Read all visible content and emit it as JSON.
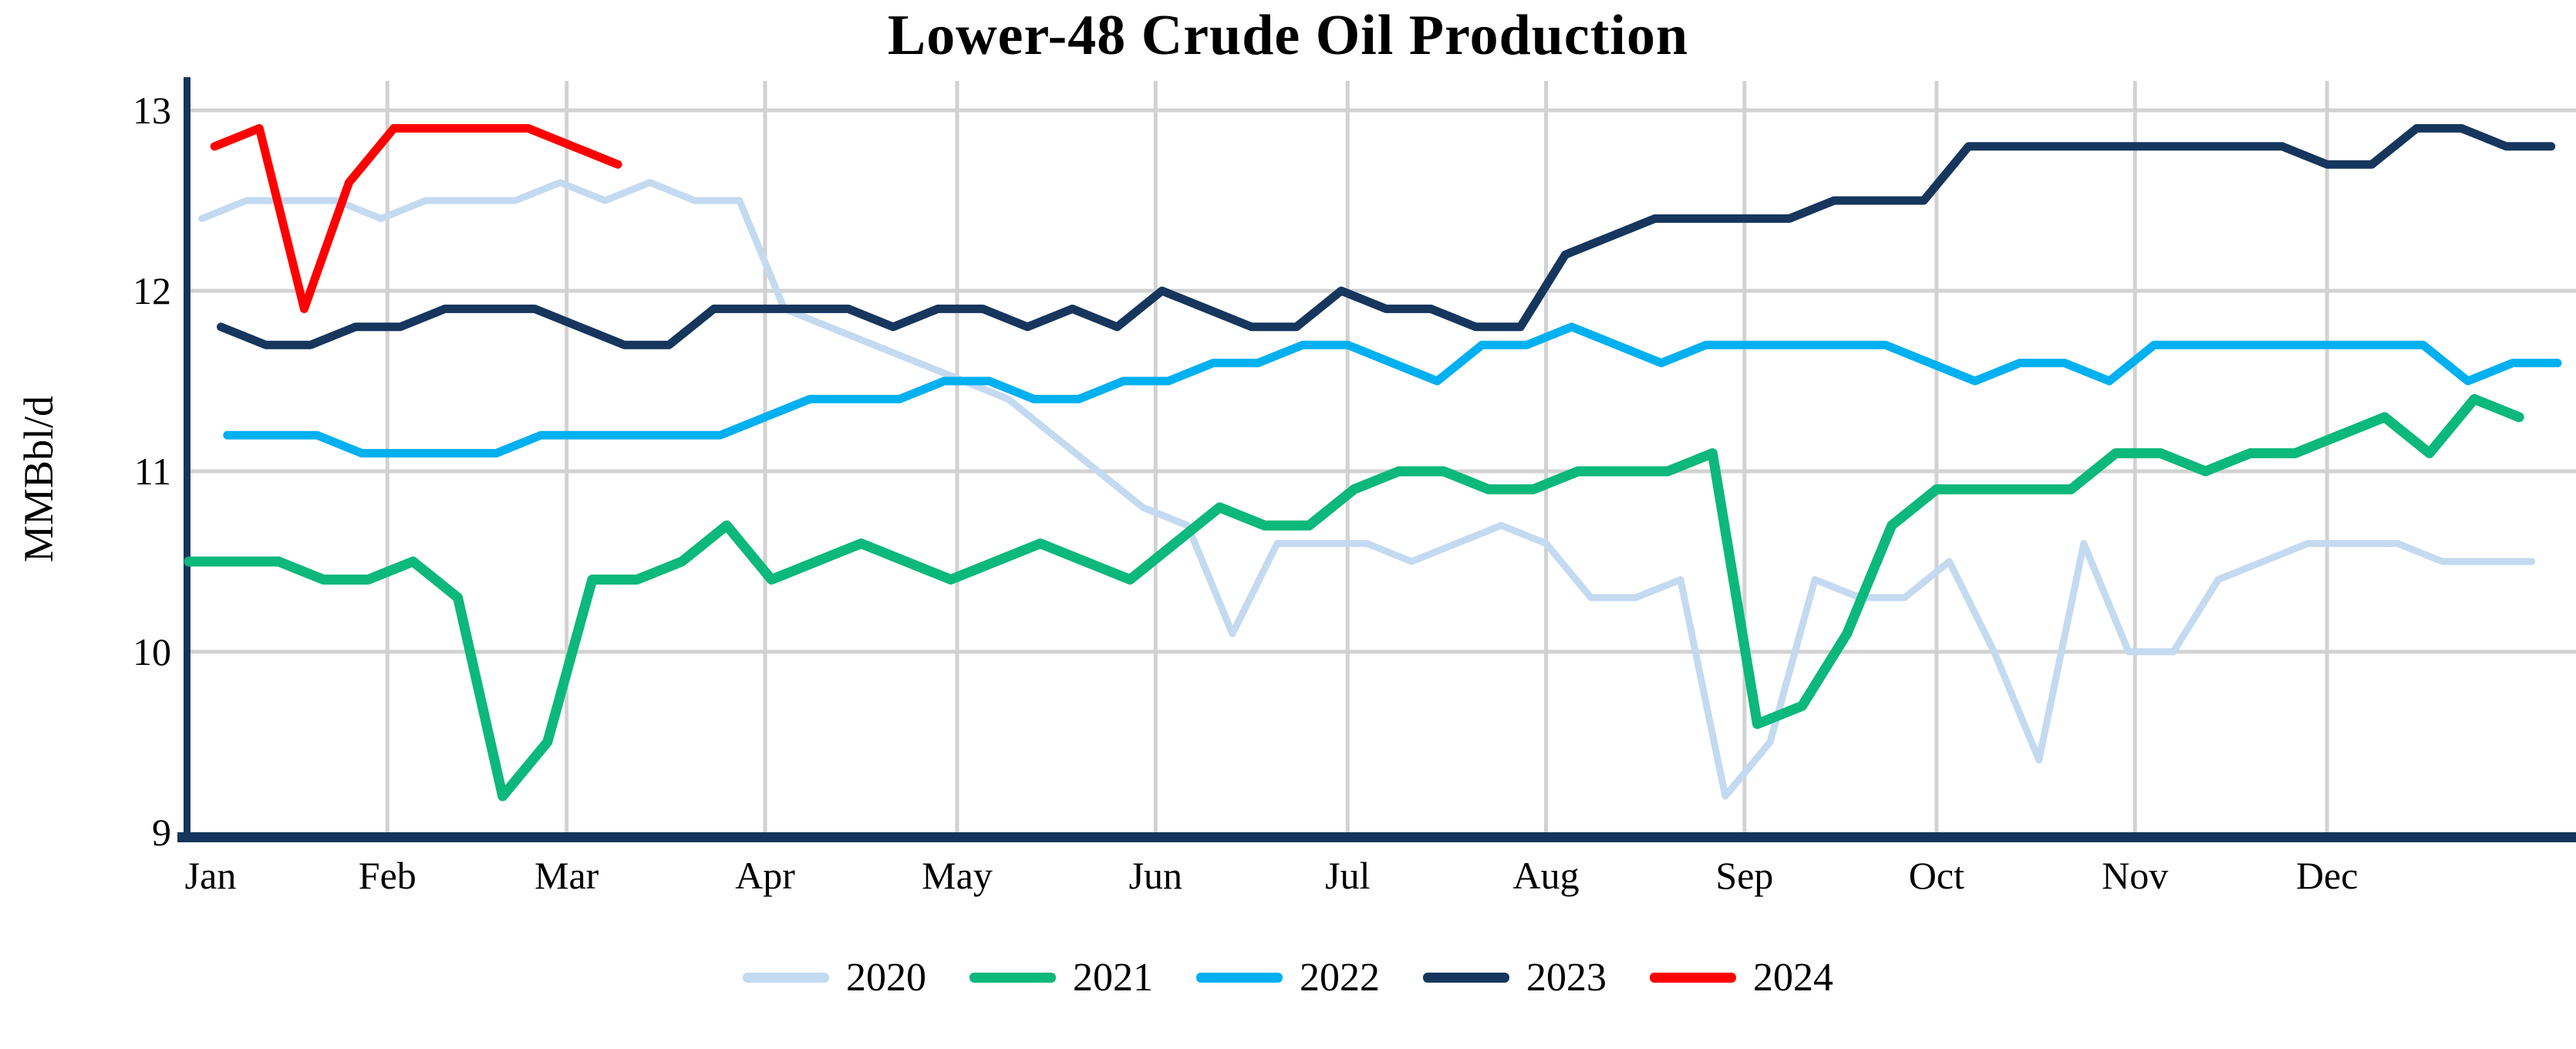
{
  "title": "Lower-48 Crude Oil Production",
  "y_axis": {
    "label": "MMBbl/d",
    "ticks": [
      13,
      12,
      11,
      10,
      9
    ],
    "min": 9,
    "max": 13
  },
  "x_axis": {
    "months": [
      "Jan",
      "Feb",
      "Mar",
      "Apr",
      "May",
      "Jun",
      "Jul",
      "Aug",
      "Sep",
      "Oct",
      "Nov",
      "Dec"
    ],
    "month_start_days": [
      1,
      32,
      60,
      91,
      121,
      152,
      182,
      213,
      244,
      274,
      305,
      335
    ]
  },
  "legend": [
    "2020",
    "2021",
    "2022",
    "2023",
    "2024"
  ],
  "colors": {
    "grid": "#D2D2D2",
    "axis": "#16365D",
    "s2020": "#C3DAF0",
    "s2021": "#0CB87B",
    "s2022": "#00B0F0",
    "s2023": "#16365D",
    "s2024": "#FF0000"
  },
  "chart_data": {
    "type": "line",
    "title": "Lower-48 Crude Oil Production",
    "xlabel": "",
    "ylabel": "MMBbl/d",
    "ylim": [
      9,
      13
    ],
    "x_unit": "weekly data points placed by day-of-year (Jan=left edge, Dec=right edge)",
    "grid": true,
    "legend_position": "bottom",
    "series": [
      {
        "name": "2020",
        "color": "#C3DAF0",
        "stroke_width": 9,
        "start_day": 3,
        "values": [
          12.4,
          12.5,
          12.5,
          12.5,
          12.4,
          12.5,
          12.5,
          12.5,
          12.6,
          12.5,
          12.6,
          12.5,
          12.5,
          11.9,
          11.8,
          11.7,
          11.6,
          11.5,
          11.4,
          11.2,
          11.0,
          10.8,
          10.7,
          10.1,
          10.6,
          10.6,
          10.6,
          10.5,
          10.6,
          10.7,
          10.6,
          10.3,
          10.3,
          10.4,
          9.2,
          9.5,
          10.4,
          10.3,
          10.3,
          10.5,
          10.0,
          9.4,
          10.6,
          10.0,
          10.0,
          10.4,
          10.5,
          10.6,
          10.6,
          10.6,
          10.5,
          10.5,
          10.5
        ]
      },
      {
        "name": "2021",
        "color": "#0CB87B",
        "stroke_width": 13,
        "start_day": 1,
        "values": [
          10.5,
          10.5,
          10.5,
          10.4,
          10.4,
          10.5,
          10.3,
          9.2,
          9.5,
          10.4,
          10.4,
          10.5,
          10.7,
          10.4,
          10.5,
          10.6,
          10.5,
          10.4,
          10.5,
          10.6,
          10.5,
          10.4,
          10.6,
          10.8,
          10.7,
          10.7,
          10.9,
          11.0,
          11.0,
          10.9,
          10.9,
          11.0,
          11.0,
          11.0,
          11.1,
          9.6,
          9.7,
          10.1,
          10.7,
          10.9,
          10.9,
          10.9,
          10.9,
          11.1,
          11.1,
          11.0,
          11.1,
          11.1,
          11.2,
          11.3,
          11.1,
          11.4,
          11.3
        ]
      },
      {
        "name": "2022",
        "color": "#00B0F0",
        "stroke_width": 11,
        "start_day": 7,
        "values": [
          11.2,
          11.2,
          11.2,
          11.1,
          11.1,
          11.1,
          11.1,
          11.2,
          11.2,
          11.2,
          11.2,
          11.2,
          11.3,
          11.4,
          11.4,
          11.4,
          11.5,
          11.5,
          11.4,
          11.4,
          11.5,
          11.5,
          11.6,
          11.6,
          11.7,
          11.7,
          11.6,
          11.5,
          11.7,
          11.7,
          11.8,
          11.7,
          11.6,
          11.7,
          11.7,
          11.7,
          11.7,
          11.7,
          11.6,
          11.5,
          11.6,
          11.6,
          11.5,
          11.7,
          11.7,
          11.7,
          11.7,
          11.7,
          11.7,
          11.7,
          11.5,
          11.6,
          11.6
        ]
      },
      {
        "name": "2023",
        "color": "#16365D",
        "stroke_width": 11,
        "start_day": 6,
        "values": [
          11.8,
          11.7,
          11.7,
          11.8,
          11.8,
          11.9,
          11.9,
          11.9,
          11.8,
          11.7,
          11.7,
          11.9,
          11.9,
          11.9,
          11.9,
          11.8,
          11.9,
          11.9,
          11.8,
          11.9,
          11.8,
          12.0,
          11.9,
          11.8,
          11.8,
          12.0,
          11.9,
          11.9,
          11.8,
          11.8,
          12.2,
          12.3,
          12.4,
          12.4,
          12.4,
          12.4,
          12.5,
          12.5,
          12.5,
          12.8,
          12.8,
          12.8,
          12.8,
          12.8,
          12.8,
          12.8,
          12.8,
          12.7,
          12.7,
          12.9,
          12.9,
          12.8,
          12.8
        ]
      },
      {
        "name": "2024",
        "color": "#FF0000",
        "stroke_width": 11,
        "start_day": 5,
        "values": [
          12.8,
          12.9,
          11.9,
          12.6,
          12.9,
          12.9,
          12.9,
          12.9,
          12.8,
          12.7
        ]
      }
    ]
  }
}
